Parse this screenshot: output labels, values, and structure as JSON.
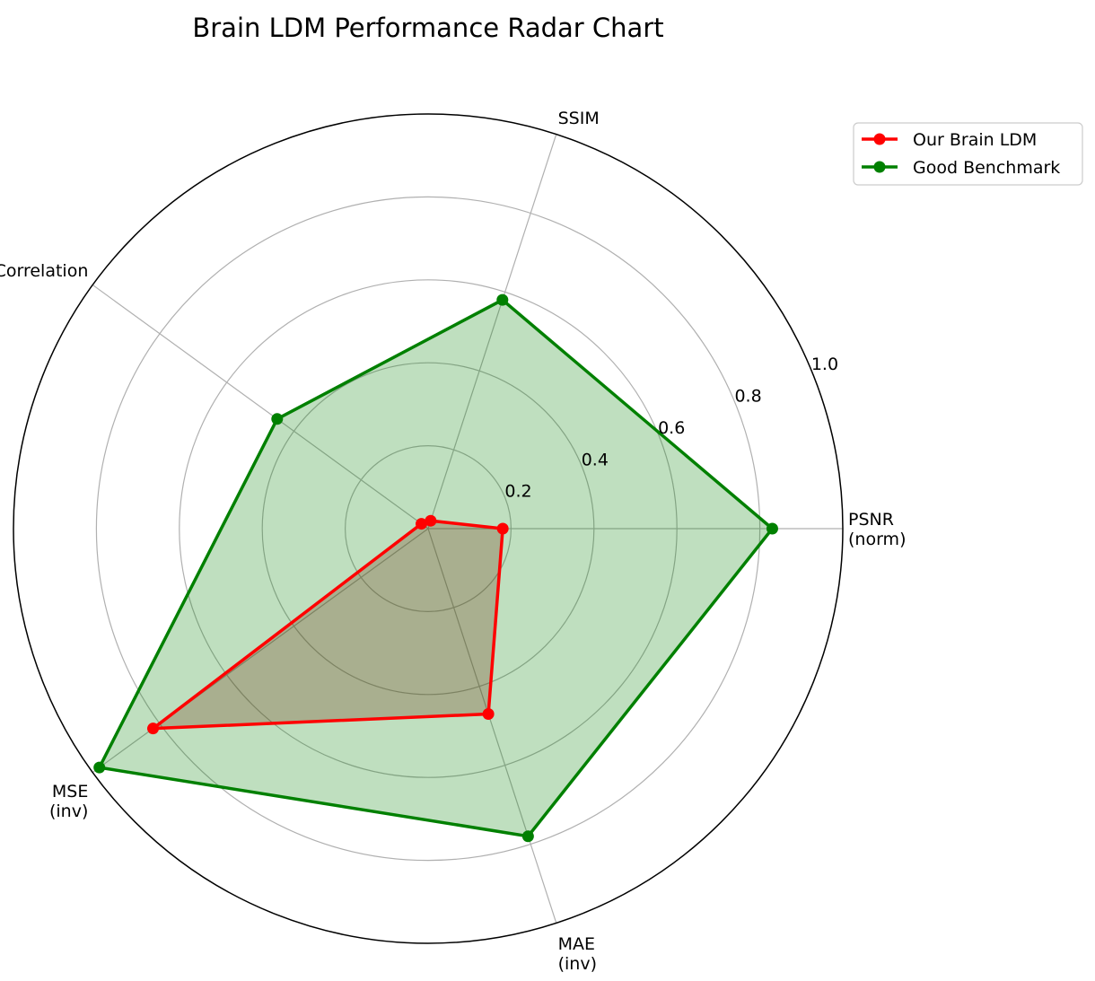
{
  "chart_data": {
    "type": "radar",
    "title": "Brain LDM Performance Radar Chart",
    "axes": [
      {
        "lines": [
          "PSNR",
          "(norm)"
        ]
      },
      {
        "lines": [
          "SSIM"
        ]
      },
      {
        "lines": [
          "Correlation"
        ]
      },
      {
        "lines": [
          "MSE",
          "(inv)"
        ]
      },
      {
        "lines": [
          "MAE",
          "(inv)"
        ]
      }
    ],
    "rlim": [
      0,
      1.0
    ],
    "rticks": [
      0.2,
      0.4,
      0.6,
      0.8,
      1.0
    ],
    "rtick_labels": [
      "0.2",
      "0.4",
      "0.6",
      "0.8",
      "1.0"
    ],
    "grid": true,
    "legend_position": "upper-right-outside",
    "series": [
      {
        "name": "Our Brain LDM",
        "color": "#ff0000",
        "fill_color": "#8b0000",
        "fill_opacity": 0.25,
        "values": [
          0.18,
          0.02,
          0.02,
          0.82,
          0.47
        ]
      },
      {
        "name": "Good Benchmark",
        "color": "#008000",
        "fill_color": "#008000",
        "fill_opacity": 0.25,
        "values": [
          0.83,
          0.58,
          0.45,
          0.98,
          0.78
        ]
      }
    ]
  }
}
